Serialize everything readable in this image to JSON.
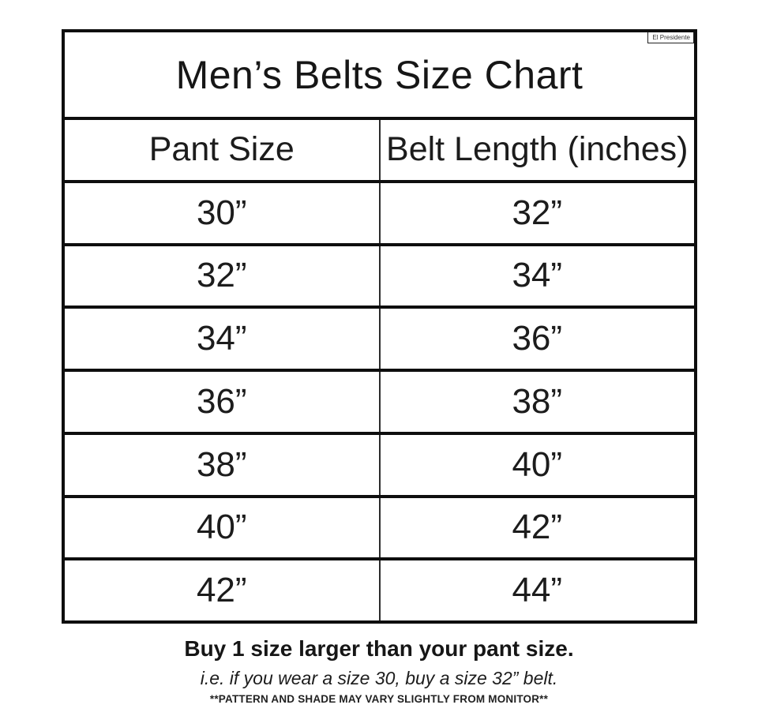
{
  "brand_label": "El Presidente",
  "chart_data": {
    "type": "table",
    "title": "Men’s Belts Size Chart",
    "columns": [
      "Pant Size",
      "Belt Length (inches)"
    ],
    "rows": [
      [
        "30”",
        "32”"
      ],
      [
        "32”",
        "34”"
      ],
      [
        "34”",
        "36”"
      ],
      [
        "36”",
        "38”"
      ],
      [
        "38”",
        "40”"
      ],
      [
        "40”",
        "42”"
      ],
      [
        "42”",
        "44”"
      ]
    ]
  },
  "footer": {
    "advice": "Buy 1 size larger than your pant size.",
    "example": "i.e. if you wear a size 30, buy a size 32” belt.",
    "disclaimer": "**PATTERN AND SHADE MAY VARY SLIGHTLY FROM MONITOR**"
  }
}
